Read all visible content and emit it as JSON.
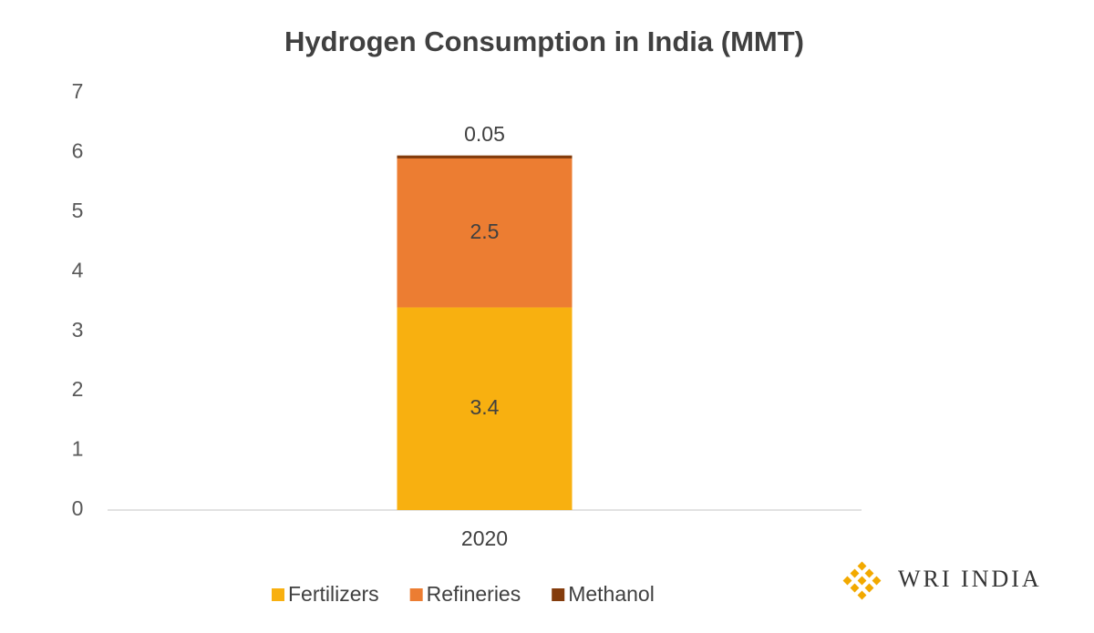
{
  "chart_data": {
    "type": "stacked_bar",
    "title": "Hydrogen Consumption in India (MMT)",
    "categories": [
      "2020"
    ],
    "series": [
      {
        "name": "Fertilizers",
        "color": "#f8b010",
        "values": [
          3.4
        ]
      },
      {
        "name": "Refineries",
        "color": "#ec7d32",
        "values": [
          2.5
        ]
      },
      {
        "name": "Methanol",
        "color": "#843c0c",
        "values": [
          0.05
        ]
      }
    ],
    "ylim": [
      0,
      7
    ],
    "yticks": [
      0,
      1,
      2,
      3,
      4,
      5,
      6,
      7
    ],
    "grid": false,
    "legend": "bottom"
  },
  "branding": {
    "logo_text": "WRI INDIA"
  }
}
